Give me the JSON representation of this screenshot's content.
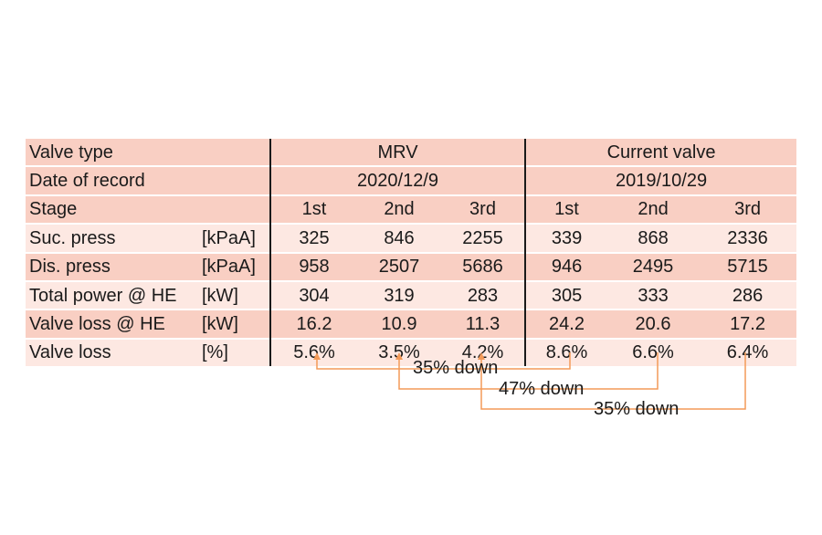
{
  "table": {
    "groups": {
      "valve_type_label": "Valve type",
      "date_label": "Date of record",
      "mrv": {
        "name": "MRV",
        "date": "2020/12/9"
      },
      "current": {
        "name": "Current valve",
        "date": "2019/10/29"
      }
    },
    "stage_label": "Stage",
    "stages": [
      "1st",
      "2nd",
      "3rd",
      "1st",
      "2nd",
      "3rd"
    ],
    "rows": [
      {
        "label": "Suc. press",
        "unit": "[kPaA]",
        "values": [
          "325",
          "846",
          "2255",
          "339",
          "868",
          "2336"
        ]
      },
      {
        "label": "Dis. press",
        "unit": "[kPaA]",
        "values": [
          "958",
          "2507",
          "5686",
          "946",
          "2495",
          "5715"
        ]
      },
      {
        "label": "Total power @ HE",
        "unit": "[kW]",
        "values": [
          "304",
          "319",
          "283",
          "305",
          "333",
          "286"
        ]
      },
      {
        "label": "Valve loss @ HE",
        "unit": "[kW]",
        "values": [
          "16.2",
          "10.9",
          "11.3",
          "24.2",
          "20.6",
          "17.2"
        ]
      },
      {
        "label": "Valve loss",
        "unit": "[%]",
        "values": [
          "5.6%",
          "3.5%",
          "4.2%",
          "8.6%",
          "6.6%",
          "6.4%"
        ]
      }
    ]
  },
  "comparisons": [
    {
      "label": "35% down"
    },
    {
      "label": "47% down"
    },
    {
      "label": "35% down"
    }
  ],
  "colors": {
    "header_row": "#f9cfc3",
    "body_row": "#fde8e2",
    "arrow": "#f39a58"
  }
}
